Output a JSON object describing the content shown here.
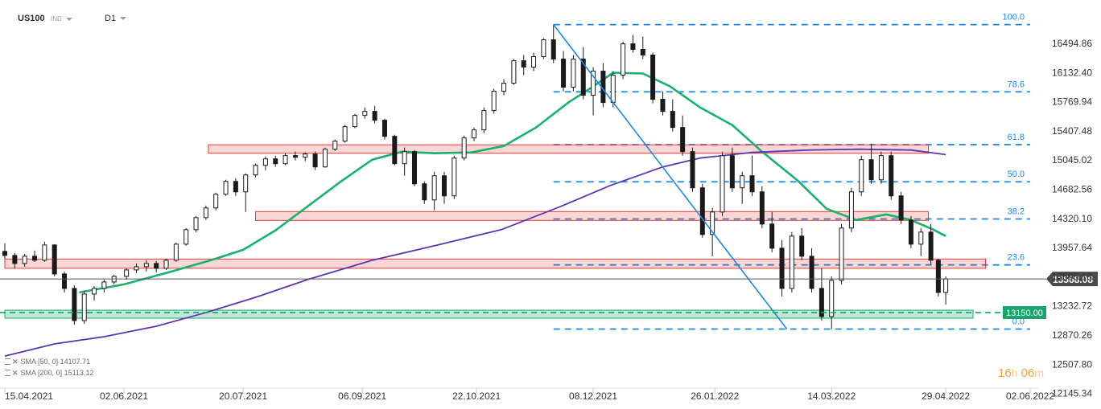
{
  "header": {
    "symbol": "US100",
    "symbol_type": "IND",
    "timeframe": "D1"
  },
  "chart_data": {
    "type": "candlestick",
    "instrument": "US100",
    "timeframe": "D1",
    "y_ticks": [
      16494.86,
      16132.4,
      15769.94,
      15407.48,
      15045.02,
      14682.56,
      14320.1,
      13957.64,
      13595.18,
      13232.72,
      12870.26,
      12507.8,
      12145.34
    ],
    "x_ticks": [
      "15.04.2021",
      "02.06.2021",
      "20.07.2021",
      "06.09.2021",
      "22.10.2021",
      "08.12.2021",
      "26.01.2022",
      "14.03.2022",
      "29.04.2022",
      "02.06.2022"
    ],
    "current_price": 13568.08,
    "current_price_label": "13568.08",
    "price_line": {
      "value": 13150.0,
      "label": "13150.00",
      "color": "#17a56b"
    },
    "fibonacci": {
      "color": "#1e88e5",
      "levels": [
        {
          "label": "100.0",
          "value": 16728
        },
        {
          "label": "78.6",
          "value": 15893
        },
        {
          "label": "61.8",
          "value": 15236
        },
        {
          "label": "50.0",
          "value": 14775
        },
        {
          "label": "38.2",
          "value": 14313
        },
        {
          "label": "23.6",
          "value": 13742
        },
        {
          "label": "0.0",
          "value": 12945
        }
      ]
    },
    "zones": [
      {
        "kind": "resistance",
        "color": "#e53935",
        "from_x": "2021-07-06",
        "to_x": "2022-04-22",
        "low": 15130,
        "high": 15235
      },
      {
        "kind": "resistance",
        "color": "#e53935",
        "from_x": "2021-07-25",
        "to_x": "2022-04-22",
        "low": 14295,
        "high": 14405
      },
      {
        "kind": "resistance",
        "color": "#e53935",
        "from_x": "2021-04-15",
        "to_x": "2022-05-15",
        "low": 13700,
        "high": 13815
      },
      {
        "kind": "support",
        "color": "#1fa86a",
        "from_x": "2021-04-15",
        "to_x": "2022-05-10",
        "low": 13080,
        "high": 13180
      }
    ],
    "trendline": {
      "color": "#1e88e5",
      "from": {
        "x": "2021-11-22",
        "y": 16728
      },
      "to": {
        "x": "2022-02-24",
        "y": 12945
      }
    },
    "sma": [
      {
        "name": "SMA [50, 0]",
        "value_label": "14107.71",
        "color": "#17b26e",
        "points": [
          [
            "2021-05-15",
            13400
          ],
          [
            "2021-06-02",
            13500
          ],
          [
            "2021-06-20",
            13650
          ],
          [
            "2021-07-07",
            13800
          ],
          [
            "2021-07-20",
            13930
          ],
          [
            "2021-08-02",
            14170
          ],
          [
            "2021-08-15",
            14470
          ],
          [
            "2021-08-28",
            14770
          ],
          [
            "2021-09-10",
            15050
          ],
          [
            "2021-09-22",
            15150
          ],
          [
            "2021-10-05",
            15130
          ],
          [
            "2021-10-20",
            15140
          ],
          [
            "2021-11-02",
            15220
          ],
          [
            "2021-11-15",
            15450
          ],
          [
            "2021-11-28",
            15760
          ],
          [
            "2021-12-08",
            15960
          ],
          [
            "2021-12-16",
            16130
          ],
          [
            "2021-12-28",
            16120
          ],
          [
            "2022-01-08",
            15960
          ],
          [
            "2022-01-20",
            15700
          ],
          [
            "2022-02-02",
            15480
          ],
          [
            "2022-02-14",
            15150
          ],
          [
            "2022-02-28",
            14800
          ],
          [
            "2022-03-12",
            14440
          ],
          [
            "2022-03-24",
            14300
          ],
          [
            "2022-04-05",
            14370
          ],
          [
            "2022-04-15",
            14300
          ],
          [
            "2022-04-24",
            14180
          ],
          [
            "2022-04-29",
            14100
          ]
        ]
      },
      {
        "name": "SMA [200, 0]",
        "value_label": "15113.12",
        "color": "#5e35b1",
        "points": [
          [
            "2021-04-15",
            12610
          ],
          [
            "2021-05-05",
            12760
          ],
          [
            "2021-05-25",
            12850
          ],
          [
            "2021-06-15",
            12980
          ],
          [
            "2021-07-05",
            13150
          ],
          [
            "2021-07-25",
            13340
          ],
          [
            "2021-08-15",
            13560
          ],
          [
            "2021-09-10",
            13800
          ],
          [
            "2021-10-05",
            13980
          ],
          [
            "2021-11-01",
            14180
          ],
          [
            "2021-11-25",
            14470
          ],
          [
            "2021-12-15",
            14730
          ],
          [
            "2022-01-05",
            14960
          ],
          [
            "2022-01-20",
            15070
          ],
          [
            "2022-02-10",
            15140
          ],
          [
            "2022-03-05",
            15170
          ],
          [
            "2022-03-25",
            15180
          ],
          [
            "2022-04-15",
            15170
          ],
          [
            "2022-04-29",
            15113
          ]
        ]
      }
    ],
    "candles": [
      [
        "2021-04-15",
        13910,
        14010,
        13820,
        13860
      ],
      [
        "2021-04-19",
        13860,
        13890,
        13700,
        13760
      ],
      [
        "2021-04-23",
        13760,
        13880,
        13720,
        13850
      ],
      [
        "2021-04-27",
        13850,
        13920,
        13780,
        13800
      ],
      [
        "2021-05-01",
        13800,
        14030,
        13780,
        13990
      ],
      [
        "2021-05-05",
        13990,
        14000,
        13600,
        13630
      ],
      [
        "2021-05-09",
        13630,
        13660,
        13400,
        13450
      ],
      [
        "2021-05-13",
        13450,
        13490,
        13000,
        13050
      ],
      [
        "2021-05-17",
        13050,
        13420,
        13010,
        13380
      ],
      [
        "2021-05-21",
        13380,
        13480,
        13300,
        13450
      ],
      [
        "2021-05-25",
        13450,
        13560,
        13400,
        13530
      ],
      [
        "2021-05-29",
        13530,
        13620,
        13500,
        13600
      ],
      [
        "2021-06-03",
        13600,
        13700,
        13560,
        13680
      ],
      [
        "2021-06-07",
        13680,
        13760,
        13640,
        13720
      ],
      [
        "2021-06-11",
        13720,
        13800,
        13660,
        13760
      ],
      [
        "2021-06-15",
        13760,
        13790,
        13650,
        13700
      ],
      [
        "2021-06-19",
        13700,
        13820,
        13680,
        13800
      ],
      [
        "2021-06-23",
        13800,
        14020,
        13780,
        14000
      ],
      [
        "2021-06-27",
        14000,
        14200,
        13980,
        14180
      ],
      [
        "2021-07-01",
        14180,
        14350,
        14150,
        14330
      ],
      [
        "2021-07-05",
        14330,
        14480,
        14300,
        14450
      ],
      [
        "2021-07-09",
        14450,
        14640,
        14420,
        14620
      ],
      [
        "2021-07-13",
        14620,
        14800,
        14600,
        14780
      ],
      [
        "2021-07-17",
        14780,
        14820,
        14600,
        14650
      ],
      [
        "2021-07-21",
        14650,
        14880,
        14400,
        14860
      ],
      [
        "2021-07-25",
        14860,
        15000,
        14830,
        14980
      ],
      [
        "2021-07-29",
        14980,
        15090,
        14920,
        15060
      ],
      [
        "2021-08-02",
        15060,
        15100,
        14960,
        15000
      ],
      [
        "2021-08-06",
        15000,
        15130,
        14980,
        15100
      ],
      [
        "2021-08-10",
        15100,
        15150,
        15040,
        15080
      ],
      [
        "2021-08-14",
        15080,
        15140,
        15030,
        15120
      ],
      [
        "2021-08-18",
        15120,
        15150,
        14920,
        14960
      ],
      [
        "2021-08-22",
        14960,
        15200,
        14950,
        15180
      ],
      [
        "2021-08-26",
        15180,
        15300,
        15160,
        15280
      ],
      [
        "2021-08-30",
        15280,
        15480,
        15260,
        15460
      ],
      [
        "2021-09-03",
        15460,
        15620,
        15440,
        15600
      ],
      [
        "2021-09-07",
        15600,
        15700,
        15560,
        15650
      ],
      [
        "2021-09-11",
        15650,
        15720,
        15500,
        15540
      ],
      [
        "2021-09-15",
        15540,
        15560,
        15300,
        15340
      ],
      [
        "2021-09-19",
        15340,
        15360,
        14980,
        15000
      ],
      [
        "2021-09-23",
        15000,
        15200,
        14850,
        15150
      ],
      [
        "2021-09-27",
        15150,
        15170,
        14720,
        14750
      ],
      [
        "2021-10-01",
        14750,
        14780,
        14500,
        14550
      ],
      [
        "2021-10-05",
        14550,
        14900,
        14420,
        14850
      ],
      [
        "2021-10-09",
        14850,
        14900,
        14500,
        14600
      ],
      [
        "2021-10-13",
        14600,
        15100,
        14560,
        15070
      ],
      [
        "2021-10-17",
        15070,
        15350,
        15040,
        15320
      ],
      [
        "2021-10-21",
        15320,
        15450,
        15280,
        15420
      ],
      [
        "2021-10-25",
        15420,
        15700,
        15380,
        15660
      ],
      [
        "2021-10-29",
        15660,
        15930,
        15620,
        15900
      ],
      [
        "2021-11-02",
        15900,
        16050,
        15850,
        16000
      ],
      [
        "2021-11-06",
        16000,
        16300,
        15980,
        16280
      ],
      [
        "2021-11-10",
        16280,
        16350,
        16100,
        16200
      ],
      [
        "2021-11-14",
        16200,
        16380,
        16150,
        16330
      ],
      [
        "2021-11-18",
        16330,
        16560,
        16300,
        16540
      ],
      [
        "2021-11-22",
        16540,
        16728,
        16250,
        16300
      ],
      [
        "2021-11-26",
        16300,
        16400,
        15900,
        15950
      ],
      [
        "2021-11-30",
        15950,
        16350,
        15900,
        16300
      ],
      [
        "2021-12-04",
        16300,
        16450,
        15800,
        15850
      ],
      [
        "2021-12-08",
        15850,
        16200,
        15600,
        16150
      ],
      [
        "2021-12-12",
        16150,
        16250,
        15700,
        15760
      ],
      [
        "2021-12-16",
        15760,
        16150,
        15700,
        16100
      ],
      [
        "2021-12-20",
        16100,
        16520,
        16050,
        16490
      ],
      [
        "2021-12-24",
        16490,
        16600,
        16380,
        16420
      ],
      [
        "2021-12-28",
        16420,
        16580,
        16300,
        16350
      ],
      [
        "2022-01-01",
        16350,
        16380,
        15750,
        15800
      ],
      [
        "2022-01-05",
        15800,
        15900,
        15600,
        15650
      ],
      [
        "2022-01-09",
        15650,
        15800,
        15400,
        15450
      ],
      [
        "2022-01-13",
        15450,
        15600,
        15100,
        15150
      ],
      [
        "2022-01-17",
        15150,
        15200,
        14650,
        14700
      ],
      [
        "2022-01-21",
        14700,
        14750,
        14080,
        14120
      ],
      [
        "2022-01-25",
        14120,
        14450,
        13850,
        14400
      ],
      [
        "2022-01-29",
        14400,
        15150,
        14350,
        15100
      ],
      [
        "2022-02-02",
        15100,
        15200,
        14650,
        14700
      ],
      [
        "2022-02-06",
        14700,
        14900,
        14500,
        14850
      ],
      [
        "2022-02-10",
        14850,
        15100,
        14600,
        14650
      ],
      [
        "2022-02-14",
        14650,
        14720,
        14200,
        14250
      ],
      [
        "2022-02-18",
        14250,
        14400,
        13900,
        13950
      ],
      [
        "2022-02-22",
        13950,
        14050,
        13350,
        13450
      ],
      [
        "2022-02-26",
        13450,
        14150,
        13400,
        14100
      ],
      [
        "2022-03-02",
        14100,
        14200,
        13800,
        13850
      ],
      [
        "2022-03-06",
        13850,
        13950,
        13400,
        13450
      ],
      [
        "2022-03-10",
        13450,
        13700,
        13050,
        13100
      ],
      [
        "2022-03-14",
        13100,
        13600,
        12945,
        13550
      ],
      [
        "2022-03-18",
        13550,
        14250,
        13500,
        14200
      ],
      [
        "2022-03-22",
        14200,
        14700,
        14150,
        14650
      ],
      [
        "2022-03-26",
        14650,
        15100,
        14600,
        15050
      ],
      [
        "2022-03-30",
        15050,
        15250,
        14750,
        14800
      ],
      [
        "2022-04-03",
        14800,
        15150,
        14750,
        15100
      ],
      [
        "2022-04-07",
        15100,
        15150,
        14550,
        14600
      ],
      [
        "2022-04-11",
        14600,
        14650,
        14250,
        14300
      ],
      [
        "2022-04-15",
        14300,
        14350,
        13950,
        14000
      ],
      [
        "2022-04-19",
        14000,
        14200,
        13850,
        14150
      ],
      [
        "2022-04-23",
        14150,
        14250,
        13750,
        13800
      ],
      [
        "2022-04-26",
        13800,
        13820,
        13350,
        13400
      ],
      [
        "2022-04-29",
        13400,
        13600,
        13250,
        13568
      ]
    ]
  },
  "indicators_legend": [
    {
      "label": "SMA [50, 0]",
      "value": "14107.71"
    },
    {
      "label": "SMA [200, 0]",
      "value": "15113.12"
    }
  ],
  "countdown": {
    "hours": "16",
    "hours_unit": "h",
    "minutes": "06",
    "minutes_unit": "m"
  }
}
